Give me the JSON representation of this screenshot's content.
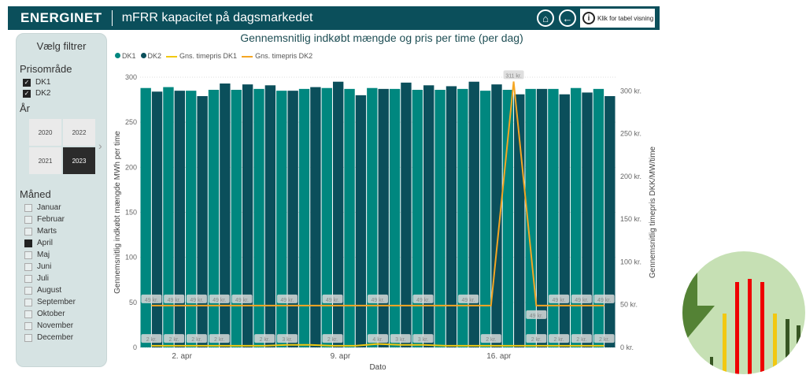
{
  "header": {
    "brand": "ENERGINET",
    "title": "mFRR kapacitet på dagsmarkedet",
    "table_button": "Klik for tabel visning",
    "info_glyph": "i",
    "icons": [
      "home-icon",
      "back-arrow-icon",
      "info-icon"
    ]
  },
  "sidebar": {
    "title": "Vælg filtrer",
    "price_area_heading": "Prisområde",
    "price_areas": [
      {
        "label": "DK1",
        "checked": true
      },
      {
        "label": "DK2",
        "checked": true
      }
    ],
    "year_heading": "År",
    "years": [
      {
        "label": "2020",
        "selected": false
      },
      {
        "label": "2022",
        "selected": false
      },
      {
        "label": "2021",
        "selected": false
      },
      {
        "label": "2023",
        "selected": true
      }
    ],
    "month_heading": "Måned",
    "months": [
      {
        "label": "Januar",
        "checked": false
      },
      {
        "label": "Februar",
        "checked": false
      },
      {
        "label": "Marts",
        "checked": false
      },
      {
        "label": "April",
        "checked": true
      },
      {
        "label": "Maj",
        "checked": false
      },
      {
        "label": "Juni",
        "checked": false
      },
      {
        "label": "Juli",
        "checked": false
      },
      {
        "label": "August",
        "checked": false
      },
      {
        "label": "September",
        "checked": false
      },
      {
        "label": "Oktober",
        "checked": false
      },
      {
        "label": "November",
        "checked": false
      },
      {
        "label": "December",
        "checked": false
      }
    ]
  },
  "colors": {
    "dk1": "#00877f",
    "dk2": "#0b4f5b",
    "dk1_line": "#f2c811",
    "dk2_line": "#f5a623",
    "header": "#0b4f5b"
  },
  "chart_data": {
    "type": "bar",
    "title": "Gennemsnitlig indkøbt mængde og pris per time (per dag)",
    "legend": [
      "DK1",
      "DK2",
      "Gns. timepris DK1",
      "Gns. timepris DK2"
    ],
    "xlabel": "Dato",
    "ylabel": "Gennemsnitlig indkøbt mængde MWh per time",
    "y2label": "Gennemsnitlig timepris DKK/MW/time",
    "days": [
      1,
      2,
      3,
      4,
      5,
      6,
      7,
      8,
      9,
      10,
      11,
      12,
      13,
      14,
      15,
      16,
      17,
      18,
      19,
      20,
      21
    ],
    "x_ticks": [
      {
        "day": 2,
        "label": "2. apr"
      },
      {
        "day": 9,
        "label": "9. apr"
      },
      {
        "day": 16,
        "label": "16. apr"
      }
    ],
    "ylim": [
      0,
      300
    ],
    "yticks": [
      0,
      50,
      100,
      150,
      200,
      250,
      300
    ],
    "y2lim": [
      0,
      316
    ],
    "y2ticks": [
      {
        "v": 0,
        "label": "0 kr."
      },
      {
        "v": 50,
        "label": "50 kr."
      },
      {
        "v": 100,
        "label": "100 kr."
      },
      {
        "v": 150,
        "label": "150 kr."
      },
      {
        "v": 200,
        "label": "200 kr."
      },
      {
        "v": 250,
        "label": "250 kr."
      },
      {
        "v": 300,
        "label": "300 kr."
      }
    ],
    "series": [
      {
        "name": "DK1",
        "type": "bar",
        "values": [
          288,
          289,
          285,
          286,
          286,
          287,
          285,
          287,
          288,
          287,
          288,
          287,
          286,
          286,
          287,
          285,
          286,
          287,
          287,
          288,
          287
        ]
      },
      {
        "name": "DK2",
        "type": "bar",
        "values": [
          284,
          285,
          279,
          293,
          292,
          291,
          285,
          289,
          295,
          280,
          287,
          294,
          291,
          290,
          295,
          292,
          281,
          287,
          281,
          283,
          279
        ]
      },
      {
        "name": "Gns. timepris DK1",
        "type": "line",
        "values": [
          2,
          2,
          2,
          2,
          2,
          2,
          3,
          3,
          2,
          2,
          4,
          3,
          3,
          2,
          2,
          2,
          2,
          2,
          2,
          2,
          2
        ]
      },
      {
        "name": "Gns. timepris DK2",
        "type": "line",
        "values": [
          49,
          49,
          49,
          49,
          49,
          49,
          49,
          49,
          49,
          49,
          49,
          49,
          49,
          49,
          49,
          49,
          311,
          49,
          49,
          49,
          49
        ]
      }
    ],
    "dk1_labels": [
      {
        "day": 1,
        "label": "2 kr."
      },
      {
        "day": 2,
        "label": "2 kr."
      },
      {
        "day": 3,
        "label": "2 kr."
      },
      {
        "day": 4,
        "label": "2 kr."
      },
      {
        "day": 6,
        "label": "2 kr."
      },
      {
        "day": 7,
        "label": "3 kr."
      },
      {
        "day": 9,
        "label": "2 kr."
      },
      {
        "day": 11,
        "label": "4 kr."
      },
      {
        "day": 12,
        "label": "3 kr."
      },
      {
        "day": 13,
        "label": "3 kr."
      },
      {
        "day": 16,
        "label": "2 kr."
      },
      {
        "day": 18,
        "label": "2 kr."
      },
      {
        "day": 19,
        "label": "2 kr."
      },
      {
        "day": 20,
        "label": "2 kr."
      },
      {
        "day": 21,
        "label": "2 kr."
      }
    ],
    "dk2_labels": [
      {
        "day": 1,
        "label": "49 kr."
      },
      {
        "day": 2,
        "label": "49 kr."
      },
      {
        "day": 3,
        "label": "49 kr."
      },
      {
        "day": 4,
        "label": "49 kr."
      },
      {
        "day": 5,
        "label": "49 kr."
      },
      {
        "day": 7,
        "label": "49 kr."
      },
      {
        "day": 9,
        "label": "49 kr."
      },
      {
        "day": 11,
        "label": "49 kr."
      },
      {
        "day": 13,
        "label": "49 kr."
      },
      {
        "day": 15,
        "label": "49 kr."
      },
      {
        "day": 17,
        "label": "311 kr."
      },
      {
        "day": 18,
        "label": "49 kr."
      },
      {
        "day": 19,
        "label": "49 kr."
      },
      {
        "day": 20,
        "label": "49 kr."
      },
      {
        "day": 21,
        "label": "49 kr."
      }
    ]
  }
}
